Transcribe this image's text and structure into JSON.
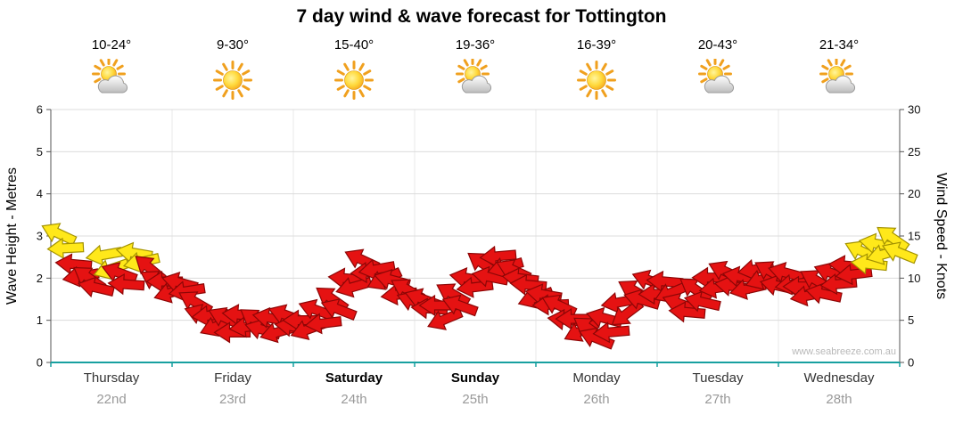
{
  "watermark": "www.seabreeze.com.au",
  "days": [
    {
      "temp": "10-24°",
      "icon": "sun-cloud",
      "name": "Thursday",
      "date": "22nd",
      "bold": false
    },
    {
      "temp": "9-30°",
      "icon": "sun",
      "name": "Friday",
      "date": "23rd",
      "bold": false
    },
    {
      "temp": "15-40°",
      "icon": "sun",
      "name": "Saturday",
      "date": "24th",
      "bold": true
    },
    {
      "temp": "19-36°",
      "icon": "sun-cloud",
      "name": "Sunday",
      "date": "25th",
      "bold": true
    },
    {
      "temp": "16-39°",
      "icon": "sun",
      "name": "Monday",
      "date": "26th",
      "bold": false
    },
    {
      "temp": "20-43°",
      "icon": "sun-cloud",
      "name": "Tuesday",
      "date": "27th",
      "bold": false
    },
    {
      "temp": "21-34°",
      "icon": "sun-cloud",
      "name": "Wednesday",
      "date": "28th",
      "bold": false
    }
  ],
  "chart_data": {
    "type": "wind-arrows",
    "title": "7 day wind & wave forecast for Tottington",
    "left_axis": {
      "label": "Wave Height - Metres",
      "min": 0,
      "max": 6,
      "ticks": [
        0,
        1,
        2,
        3,
        4,
        5,
        6
      ]
    },
    "right_axis": {
      "label": "Wind Speed - Knots",
      "min": 0,
      "max": 30,
      "ticks": [
        0,
        5,
        10,
        15,
        20,
        25,
        30
      ]
    },
    "x_axis": {
      "num_days": 7,
      "grid": true
    },
    "colors": {
      "arrow_red": "#e51212",
      "arrow_red_outline": "#8c0606",
      "arrow_yellow": "#ffe81a",
      "arrow_yellow_outline": "#a39200",
      "axis_teal": "#18a0a0",
      "axis_dark": "#555555",
      "grid": "#dcdcdc",
      "grid_vertical": "#e8e8e8"
    },
    "point_format": [
      "time_days",
      "wind_knots",
      "direction_deg",
      "color(r=red,y=yellow)"
    ],
    "points": [
      [
        0.0625,
        14.5,
        205,
        "y"
      ],
      [
        0.1875,
        11,
        185,
        "r"
      ],
      [
        0.3125,
        9.5,
        215,
        "r"
      ],
      [
        0.4375,
        12,
        170,
        "y"
      ],
      [
        0.5625,
        10,
        200,
        "r"
      ],
      [
        0.6875,
        12.5,
        190,
        "y"
      ],
      [
        0.8125,
        10.5,
        220,
        "r"
      ],
      [
        0.9375,
        9,
        180,
        "r"
      ],
      [
        1.0625,
        9,
        195,
        "r"
      ],
      [
        1.1875,
        6.5,
        210,
        "r"
      ],
      [
        1.3125,
        5,
        175,
        "r"
      ],
      [
        1.4375,
        4.5,
        205,
        "r"
      ],
      [
        1.5625,
        5,
        185,
        "r"
      ],
      [
        1.6875,
        4.5,
        215,
        "r"
      ],
      [
        1.8125,
        4.5,
        190,
        "r"
      ],
      [
        1.9375,
        5,
        200,
        "r"
      ],
      [
        2.0625,
        4.5,
        180,
        "r"
      ],
      [
        2.1875,
        5.5,
        200,
        "r"
      ],
      [
        2.3125,
        7,
        215,
        "r"
      ],
      [
        2.4375,
        9.5,
        185,
        "r"
      ],
      [
        2.5625,
        11.5,
        205,
        "r"
      ],
      [
        2.6875,
        10.5,
        170,
        "r"
      ],
      [
        2.8125,
        9,
        195,
        "r"
      ],
      [
        2.9375,
        8,
        210,
        "r"
      ],
      [
        3.0625,
        7,
        200,
        "r"
      ],
      [
        3.1875,
        6,
        180,
        "r"
      ],
      [
        3.3125,
        7.5,
        210,
        "r"
      ],
      [
        3.4375,
        9.5,
        190,
        "r"
      ],
      [
        3.5625,
        11,
        215,
        "r"
      ],
      [
        3.6875,
        12,
        175,
        "r"
      ],
      [
        3.8125,
        10.5,
        205,
        "r"
      ],
      [
        3.9375,
        8.5,
        185,
        "r"
      ],
      [
        4.0625,
        7.5,
        190,
        "r"
      ],
      [
        4.1875,
        6,
        205,
        "r"
      ],
      [
        4.3125,
        4.5,
        180,
        "r"
      ],
      [
        4.4375,
        3.5,
        215,
        "r"
      ],
      [
        4.5625,
        4.5,
        195,
        "r"
      ],
      [
        4.6875,
        6.5,
        170,
        "r"
      ],
      [
        4.8125,
        8,
        210,
        "r"
      ],
      [
        4.9375,
        9,
        200,
        "r"
      ],
      [
        5.0625,
        9,
        185,
        "r"
      ],
      [
        5.1875,
        6.5,
        200,
        "r"
      ],
      [
        5.3125,
        8,
        215,
        "r"
      ],
      [
        5.4375,
        9.5,
        180,
        "r"
      ],
      [
        5.5625,
        10,
        205,
        "r"
      ],
      [
        5.6875,
        9.5,
        190,
        "r"
      ],
      [
        5.8125,
        10.5,
        170,
        "r"
      ],
      [
        5.9375,
        10,
        210,
        "r"
      ],
      [
        6.0625,
        10,
        195,
        "r"
      ],
      [
        6.1875,
        8.5,
        180,
        "r"
      ],
      [
        6.3125,
        9,
        210,
        "r"
      ],
      [
        6.4375,
        10,
        200,
        "r"
      ],
      [
        6.5625,
        11,
        185,
        "r"
      ],
      [
        6.6875,
        12.5,
        205,
        "y"
      ],
      [
        6.8125,
        13.5,
        190,
        "y"
      ],
      [
        6.9375,
        14,
        215,
        "y"
      ]
    ]
  }
}
